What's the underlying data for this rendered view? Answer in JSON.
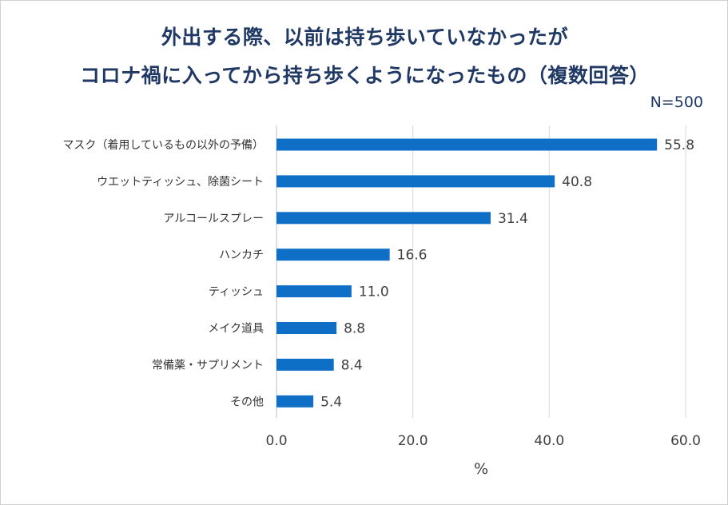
{
  "chart_data": {
    "type": "bar",
    "orientation": "horizontal",
    "title_lines": [
      "外出する際、以前は持ち歩いていなかったが",
      "コロナ禍に入ってから持ち歩くようになったもの（複数回答）"
    ],
    "n_label": "N=500",
    "categories": [
      "マスク（着用しているもの以外の予備）",
      "ウエットティッシュ、除菌シート",
      "アルコールスプレー",
      "ハンカチ",
      "ティッシュ",
      "メイク道具",
      "常備薬・サプリメント",
      "その他"
    ],
    "values": [
      55.8,
      40.8,
      31.4,
      16.6,
      11.0,
      8.8,
      8.4,
      5.4
    ],
    "value_labels": [
      "55.8",
      "40.8",
      "31.4",
      "16.6",
      "11.0",
      "8.8",
      "8.4",
      "5.4"
    ],
    "xlim": [
      0,
      60
    ],
    "ticks": [
      0,
      20,
      40,
      60
    ],
    "tick_labels": [
      "0.0",
      "20.0",
      "40.0",
      "60.0"
    ],
    "xlabel": "%",
    "grid": true,
    "bar_color": "#0f6fc6"
  }
}
